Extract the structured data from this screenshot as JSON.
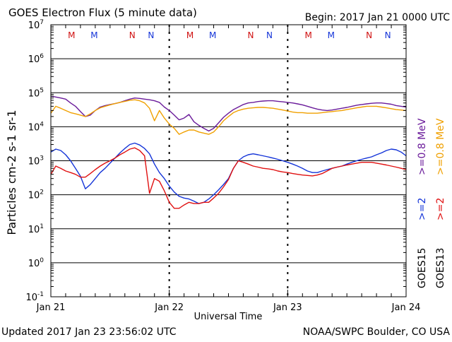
{
  "header": {
    "title": "GOES Electron Flux (5 minute data)",
    "begin": "Begin: 2017 Jan 21 0000 UTC"
  },
  "footer": {
    "updated": "Updated 2017 Jan 23 23:56:02 UTC",
    "credit": "NOAA/SWPC Boulder, CO USA"
  },
  "colors": {
    "goes15_high": "#6a1b9a",
    "goes13_high": "#f0a000",
    "goes15_low": "#1434d8",
    "goes13_low": "#e01010",
    "marker_m_first": "#d01010",
    "marker_m_second": "#1434d8",
    "marker_n_first": "#d01010",
    "marker_n_second": "#1434d8"
  },
  "chart_data": {
    "type": "line",
    "title": "GOES Electron Flux (5 minute data)",
    "xlabel": "Universal Time",
    "ylabel": "Particles cm-2 s-1 sr-1",
    "yscale": "log",
    "ylim": [
      0.1,
      10000000
    ],
    "xlim": [
      0,
      72
    ],
    "x_unit": "hours since 2017 Jan 21 0000 UTC",
    "y_ticks": [
      {
        "base": "10",
        "exp": "7"
      },
      {
        "base": "10",
        "exp": "6"
      },
      {
        "base": "10",
        "exp": "5"
      },
      {
        "base": "10",
        "exp": "4"
      },
      {
        "base": "10",
        "exp": "3"
      },
      {
        "base": "10",
        "exp": "2"
      },
      {
        "base": "10",
        "exp": "1"
      },
      {
        "base": "10",
        "exp": "0"
      },
      {
        "base": "10",
        "exp": "-1"
      }
    ],
    "x_ticks": [
      "Jan 21",
      "Jan 22",
      "Jan 23",
      "Jan 24"
    ],
    "threshold_value": 1000,
    "markers": [
      {
        "label": "M",
        "hour": 4.2,
        "color_key": "marker_m_first"
      },
      {
        "label": "M",
        "hour": 8.8,
        "color_key": "marker_m_second"
      },
      {
        "label": "N",
        "hour": 16.5,
        "color_key": "marker_n_first"
      },
      {
        "label": "N",
        "hour": 20.3,
        "color_key": "marker_n_second"
      },
      {
        "label": "M",
        "hour": 28.2,
        "color_key": "marker_m_first"
      },
      {
        "label": "M",
        "hour": 32.8,
        "color_key": "marker_m_second"
      },
      {
        "label": "N",
        "hour": 40.5,
        "color_key": "marker_n_first"
      },
      {
        "label": "N",
        "hour": 44.3,
        "color_key": "marker_n_second"
      },
      {
        "label": "M",
        "hour": 52.2,
        "color_key": "marker_m_first"
      },
      {
        "label": "M",
        "hour": 56.8,
        "color_key": "marker_m_second"
      },
      {
        "label": "N",
        "hour": 64.5,
        "color_key": "marker_n_first"
      },
      {
        "label": "N",
        "hour": 68.3,
        "color_key": "marker_n_second"
      }
    ],
    "legend": [
      {
        "label": ">=0.8 MeV",
        "color_key": "goes13_high"
      },
      {
        "label": ">=0.8 MeV",
        "color_key": "goes15_high"
      },
      {
        "label": ">=2",
        "color_key": "goes13_low"
      },
      {
        "label": ">=2",
        "color_key": "goes15_low"
      },
      {
        "label": "GOES13",
        "color_key": "axis"
      },
      {
        "label": "GOES15",
        "color_key": "axis"
      }
    ],
    "series": [
      {
        "name": "GOES15 >=0.8 MeV",
        "color_key": "goes15_high",
        "x": [
          0,
          1,
          2,
          3,
          4,
          5,
          6,
          7,
          8,
          9,
          10,
          11,
          12,
          13,
          14,
          15,
          16,
          17,
          18,
          19,
          20,
          21,
          22,
          23,
          24,
          25,
          26,
          27,
          28,
          29,
          30,
          31,
          32,
          33,
          34,
          35,
          36,
          37,
          38,
          39,
          40,
          41,
          42,
          43,
          44,
          45,
          46,
          47,
          48,
          49,
          50,
          51,
          52,
          53,
          54,
          55,
          56,
          57,
          58,
          59,
          60,
          61,
          62,
          63,
          64,
          65,
          66,
          67,
          68,
          69,
          70,
          71,
          72
        ],
        "y": [
          80000,
          75000,
          70000,
          65000,
          50000,
          40000,
          28000,
          20000,
          22000,
          30000,
          38000,
          42000,
          45000,
          48000,
          52000,
          58000,
          65000,
          70000,
          68000,
          65000,
          62000,
          58000,
          52000,
          38000,
          30000,
          22000,
          16000,
          18000,
          23000,
          14000,
          11000,
          9000,
          7500,
          9000,
          13000,
          19000,
          25000,
          32000,
          38000,
          45000,
          50000,
          52000,
          55000,
          57000,
          58000,
          58000,
          56000,
          54000,
          52000,
          50000,
          47000,
          44000,
          40000,
          36000,
          33000,
          31000,
          30000,
          31000,
          33000,
          35000,
          37000,
          40000,
          43000,
          45000,
          47000,
          49000,
          50000,
          50000,
          48000,
          46000,
          42000,
          40000,
          38000
        ]
      },
      {
        "name": "GOES13 >=0.8 MeV",
        "color_key": "goes13_high",
        "x": [
          0,
          1,
          2,
          3,
          4,
          5,
          6,
          7,
          8,
          9,
          10,
          11,
          12,
          13,
          14,
          15,
          16,
          17,
          18,
          19,
          20,
          21,
          22,
          23,
          24,
          25,
          26,
          27,
          28,
          29,
          30,
          31,
          32,
          33,
          34,
          35,
          36,
          37,
          38,
          39,
          40,
          41,
          42,
          43,
          44,
          45,
          46,
          47,
          48,
          49,
          50,
          51,
          52,
          53,
          54,
          55,
          56,
          57,
          58,
          59,
          60,
          61,
          62,
          63,
          64,
          65,
          66,
          67,
          68,
          69,
          70,
          71,
          72
        ],
        "y": [
          25000,
          40000,
          35000,
          30000,
          26000,
          24000,
          22000,
          20000,
          24000,
          30000,
          36000,
          40000,
          44000,
          48000,
          52000,
          56000,
          60000,
          62000,
          58000,
          50000,
          35000,
          15000,
          30000,
          18000,
          12000,
          9000,
          6000,
          7000,
          8000,
          8000,
          7000,
          6500,
          6000,
          7000,
          10000,
          15000,
          20000,
          26000,
          30000,
          33000,
          35000,
          36000,
          37000,
          37000,
          36000,
          35000,
          33000,
          31000,
          29000,
          27000,
          26000,
          26000,
          25000,
          25000,
          25000,
          26000,
          27000,
          28000,
          29000,
          30000,
          32000,
          34000,
          36000,
          38000,
          40000,
          40000,
          40000,
          38000,
          36000,
          34000,
          32000,
          31000,
          30000
        ]
      },
      {
        "name": "GOES15 >=2 MeV",
        "color_key": "goes15_low",
        "x": [
          0,
          1,
          2,
          3,
          4,
          5,
          6,
          7,
          8,
          9,
          10,
          11,
          12,
          13,
          14,
          15,
          16,
          17,
          18,
          19,
          20,
          21,
          22,
          23,
          24,
          25,
          26,
          27,
          28,
          29,
          30,
          31,
          32,
          33,
          34,
          35,
          36,
          37,
          38,
          39,
          40,
          41,
          42,
          43,
          44,
          45,
          46,
          47,
          48,
          49,
          50,
          51,
          52,
          53,
          54,
          55,
          56,
          57,
          58,
          59,
          60,
          61,
          62,
          63,
          64,
          65,
          66,
          67,
          68,
          69,
          70,
          71,
          72
        ],
        "y": [
          1800,
          2200,
          2000,
          1500,
          1000,
          600,
          350,
          150,
          200,
          300,
          450,
          600,
          850,
          1200,
          1700,
          2300,
          3000,
          3300,
          2900,
          2300,
          1600,
          800,
          450,
          300,
          180,
          120,
          90,
          80,
          75,
          65,
          55,
          60,
          75,
          100,
          140,
          200,
          300,
          600,
          1000,
          1300,
          1500,
          1600,
          1500,
          1400,
          1300,
          1200,
          1100,
          1000,
          900,
          800,
          700,
          600,
          500,
          450,
          450,
          500,
          550,
          600,
          650,
          700,
          800,
          900,
          1000,
          1100,
          1200,
          1300,
          1500,
          1700,
          2000,
          2200,
          2100,
          1800,
          1400
        ]
      },
      {
        "name": "GOES13 >=2 MeV",
        "color_key": "goes13_low",
        "x": [
          0,
          1,
          2,
          3,
          4,
          5,
          6,
          7,
          8,
          9,
          10,
          11,
          12,
          13,
          14,
          15,
          16,
          17,
          18,
          19,
          20,
          21,
          22,
          23,
          24,
          25,
          26,
          27,
          28,
          29,
          30,
          31,
          32,
          33,
          34,
          35,
          36,
          37,
          38,
          39,
          40,
          41,
          42,
          43,
          44,
          45,
          46,
          47,
          48,
          49,
          50,
          51,
          52,
          53,
          54,
          55,
          56,
          57,
          58,
          59,
          60,
          61,
          62,
          63,
          64,
          65,
          66,
          67,
          68,
          69,
          70,
          71,
          72
        ],
        "y": [
          400,
          700,
          600,
          500,
          450,
          400,
          330,
          330,
          420,
          550,
          700,
          850,
          1000,
          1200,
          1500,
          1800,
          2200,
          2400,
          2000,
          1400,
          110,
          300,
          250,
          130,
          60,
          40,
          40,
          50,
          60,
          55,
          55,
          60,
          60,
          80,
          110,
          170,
          280,
          600,
          1000,
          900,
          800,
          700,
          650,
          600,
          580,
          550,
          500,
          470,
          450,
          420,
          400,
          380,
          370,
          360,
          380,
          420,
          500,
          600,
          650,
          700,
          750,
          800,
          850,
          900,
          900,
          900,
          850,
          800,
          750,
          700,
          650,
          600,
          550
        ]
      }
    ]
  }
}
